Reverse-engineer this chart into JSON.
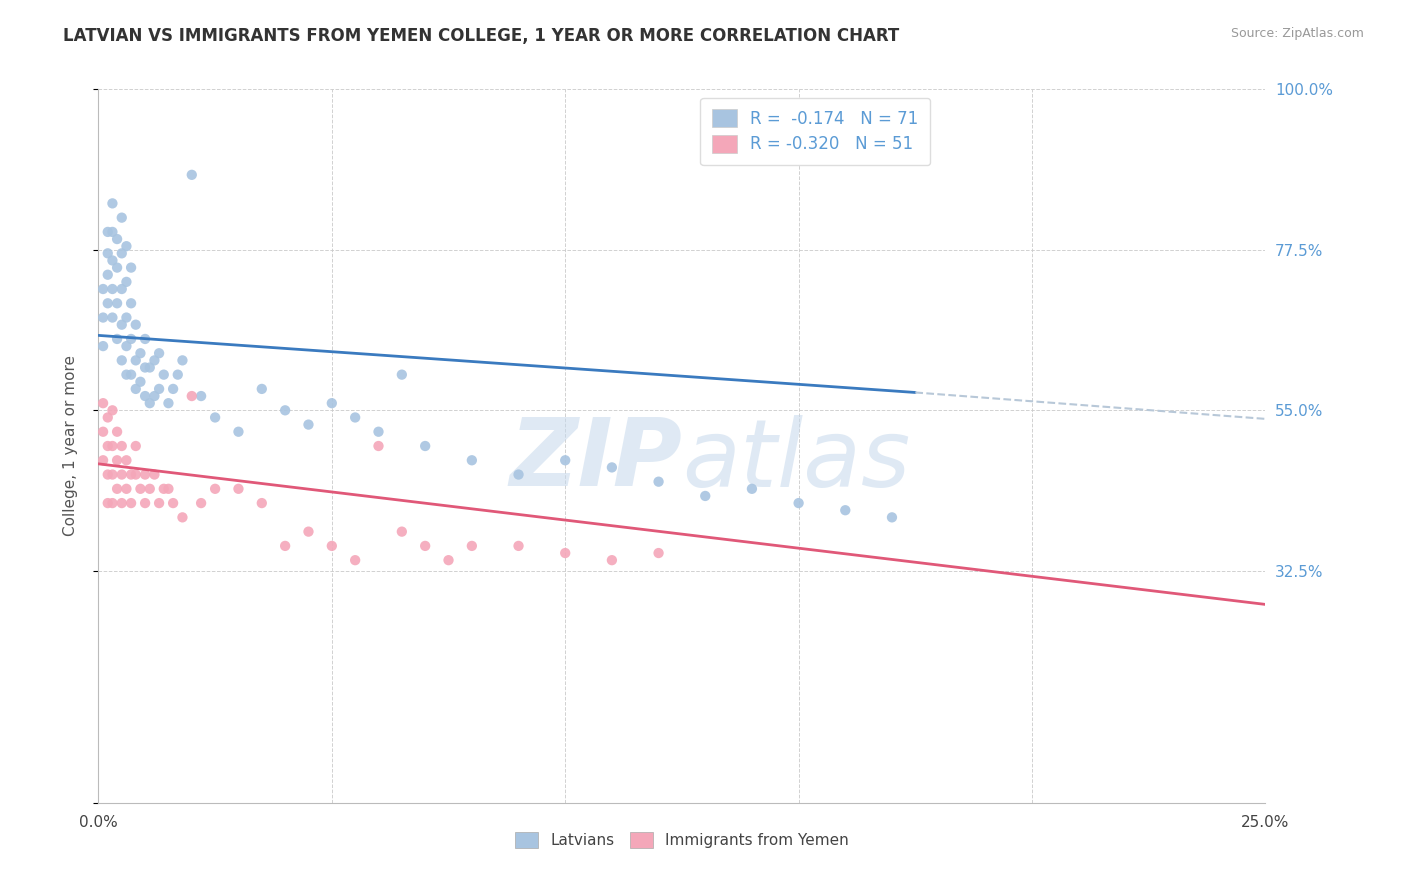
{
  "title": "LATVIAN VS IMMIGRANTS FROM YEMEN COLLEGE, 1 YEAR OR MORE CORRELATION CHART",
  "source_text": "Source: ZipAtlas.com",
  "ylabel": "College, 1 year or more",
  "xmin": 0.0,
  "xmax": 0.25,
  "ymin": 0.0,
  "ymax": 1.0,
  "right_yticks": [
    1.0,
    0.775,
    0.55,
    0.325
  ],
  "right_yticklabels": [
    "100.0%",
    "77.5%",
    "55.0%",
    "32.5%"
  ],
  "legend_r_latvian": "-0.174",
  "legend_n_latvian": "71",
  "legend_r_yemen": "-0.320",
  "legend_n_yemen": "51",
  "color_latvian": "#a8c4e0",
  "color_yemen": "#f4a7b9",
  "trendline_latvian_color": "#3a7abf",
  "trendline_yemen_color": "#e05878",
  "trendline_ext_color": "#b8c8d8",
  "latvian_x": [
    0.001,
    0.001,
    0.001,
    0.002,
    0.002,
    0.002,
    0.002,
    0.003,
    0.003,
    0.003,
    0.003,
    0.003,
    0.004,
    0.004,
    0.004,
    0.004,
    0.005,
    0.005,
    0.005,
    0.005,
    0.005,
    0.006,
    0.006,
    0.006,
    0.006,
    0.006,
    0.007,
    0.007,
    0.007,
    0.007,
    0.008,
    0.008,
    0.008,
    0.009,
    0.009,
    0.01,
    0.01,
    0.01,
    0.011,
    0.011,
    0.012,
    0.012,
    0.013,
    0.013,
    0.014,
    0.015,
    0.016,
    0.017,
    0.018,
    0.02,
    0.022,
    0.025,
    0.03,
    0.035,
    0.04,
    0.045,
    0.05,
    0.055,
    0.06,
    0.065,
    0.07,
    0.08,
    0.09,
    0.1,
    0.11,
    0.12,
    0.13,
    0.14,
    0.15,
    0.16,
    0.17
  ],
  "latvian_y": [
    0.64,
    0.68,
    0.72,
    0.7,
    0.74,
    0.77,
    0.8,
    0.68,
    0.72,
    0.76,
    0.8,
    0.84,
    0.65,
    0.7,
    0.75,
    0.79,
    0.62,
    0.67,
    0.72,
    0.77,
    0.82,
    0.6,
    0.64,
    0.68,
    0.73,
    0.78,
    0.6,
    0.65,
    0.7,
    0.75,
    0.58,
    0.62,
    0.67,
    0.59,
    0.63,
    0.57,
    0.61,
    0.65,
    0.56,
    0.61,
    0.57,
    0.62,
    0.58,
    0.63,
    0.6,
    0.56,
    0.58,
    0.6,
    0.62,
    0.88,
    0.57,
    0.54,
    0.52,
    0.58,
    0.55,
    0.53,
    0.56,
    0.54,
    0.52,
    0.6,
    0.5,
    0.48,
    0.46,
    0.48,
    0.47,
    0.45,
    0.43,
    0.44,
    0.42,
    0.41,
    0.4
  ],
  "yemen_x": [
    0.001,
    0.001,
    0.001,
    0.002,
    0.002,
    0.002,
    0.002,
    0.003,
    0.003,
    0.003,
    0.003,
    0.004,
    0.004,
    0.004,
    0.005,
    0.005,
    0.005,
    0.006,
    0.006,
    0.007,
    0.007,
    0.008,
    0.008,
    0.009,
    0.01,
    0.01,
    0.011,
    0.012,
    0.013,
    0.014,
    0.015,
    0.016,
    0.018,
    0.02,
    0.022,
    0.025,
    0.03,
    0.035,
    0.04,
    0.045,
    0.05,
    0.055,
    0.06,
    0.065,
    0.07,
    0.075,
    0.08,
    0.09,
    0.1,
    0.11,
    0.12
  ],
  "yemen_y": [
    0.56,
    0.52,
    0.48,
    0.54,
    0.5,
    0.46,
    0.42,
    0.55,
    0.5,
    0.46,
    0.42,
    0.52,
    0.48,
    0.44,
    0.5,
    0.46,
    0.42,
    0.48,
    0.44,
    0.46,
    0.42,
    0.5,
    0.46,
    0.44,
    0.46,
    0.42,
    0.44,
    0.46,
    0.42,
    0.44,
    0.44,
    0.42,
    0.4,
    0.57,
    0.42,
    0.44,
    0.44,
    0.42,
    0.36,
    0.38,
    0.36,
    0.34,
    0.5,
    0.38,
    0.36,
    0.34,
    0.36,
    0.36,
    0.35,
    0.34,
    0.35
  ],
  "background_color": "#ffffff",
  "grid_color": "#cccccc",
  "title_color": "#333333",
  "axis_label_color": "#555555",
  "right_axis_color": "#5b9bd5",
  "watermark_color": "#c5d8ec",
  "lv_trend_x0": 0.0,
  "lv_trend_y0": 0.655,
  "lv_trend_x1": 0.175,
  "lv_trend_y1": 0.575,
  "lv_trend_ext_x1": 0.25,
  "lv_trend_ext_y1": 0.538,
  "ye_trend_x0": 0.0,
  "ye_trend_y0": 0.475,
  "ye_trend_x1": 0.25,
  "ye_trend_y1": 0.278
}
